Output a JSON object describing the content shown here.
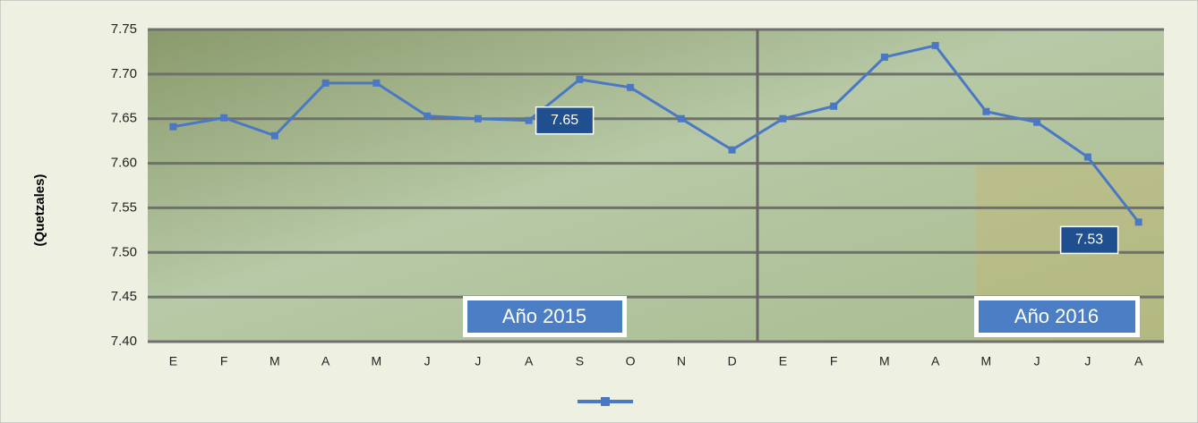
{
  "chart_data": {
    "type": "line",
    "y_label": "(Quetzales)",
    "categories": [
      "E",
      "F",
      "M",
      "A",
      "M",
      "J",
      "J",
      "A",
      "S",
      "O",
      "N",
      "D",
      "E",
      "F",
      "M",
      "A",
      "M",
      "J",
      "J",
      "A"
    ],
    "series": [
      {
        "color": "#4a78c4",
        "values": [
          7.641,
          7.651,
          7.631,
          7.69,
          7.69,
          7.653,
          7.65,
          7.648,
          7.694,
          7.685,
          7.65,
          7.615,
          7.65,
          7.664,
          7.719,
          7.732,
          7.658,
          7.646,
          7.607,
          7.534
        ],
        "value_labels": [
          null,
          null,
          null,
          null,
          null,
          null,
          null,
          "7.65",
          null,
          null,
          null,
          null,
          null,
          null,
          null,
          null,
          null,
          null,
          null,
          "7.53"
        ]
      }
    ],
    "annotations": [
      "Año 2015",
      "Año 2016"
    ],
    "ylim": [
      7.4,
      7.75
    ],
    "yticks": [
      {
        "value": 7.4,
        "label": "7.40"
      },
      7.45,
      {
        "value": 7.5,
        "label": "7.50"
      },
      7.55,
      {
        "value": 7.6,
        "label": "7.60"
      },
      7.65,
      {
        "value": 7.7,
        "label": "7.70"
      },
      7.75
    ],
    "grid": true
  }
}
